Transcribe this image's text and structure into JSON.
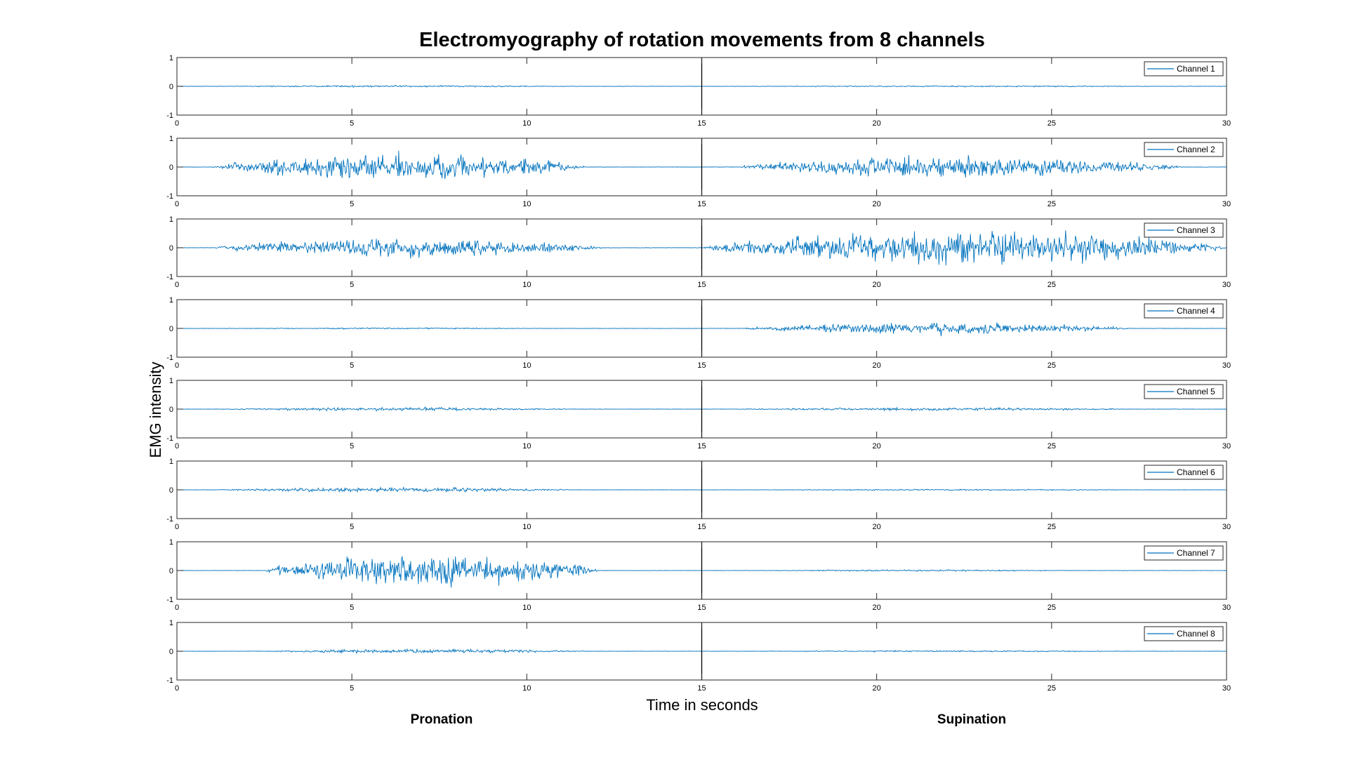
{
  "chart_data": {
    "type": "line",
    "title": "Electromyography of rotation movements from 8 channels",
    "xlabel": "Time in seconds",
    "ylabel": "EMG intensity",
    "xlim": [
      0,
      30
    ],
    "ylim": [
      -1,
      1
    ],
    "xticks": [
      "0",
      "5",
      "10",
      "15",
      "20",
      "25",
      "30"
    ],
    "yticks": [
      "1",
      "0",
      "-1"
    ],
    "grid": false,
    "legend_placement": "top-right",
    "series_color": "#0072BD",
    "divider_x": 15,
    "phase_labels": [
      "Pronation",
      "Supination"
    ],
    "series": [
      {
        "name": "Channel 1",
        "bursts": [
          {
            "start": 0.8,
            "end": 11.5,
            "amp": 0.04
          },
          {
            "start": 15.8,
            "end": 29.0,
            "amp": 0.03
          }
        ],
        "baseline": 0.01
      },
      {
        "name": "Channel 2",
        "bursts": [
          {
            "start": 1.0,
            "end": 11.7,
            "amp": 0.6
          },
          {
            "start": 16.0,
            "end": 28.8,
            "amp": 0.45
          }
        ],
        "baseline": 0.01
      },
      {
        "name": "Channel 3",
        "bursts": [
          {
            "start": 1.0,
            "end": 12.2,
            "amp": 0.4
          },
          {
            "start": 15.0,
            "end": 30.0,
            "amp": 0.75
          }
        ],
        "baseline": 0.012
      },
      {
        "name": "Channel 4",
        "bursts": [
          {
            "start": 1.0,
            "end": 11.0,
            "amp": 0.03
          },
          {
            "start": 16.1,
            "end": 27.3,
            "amp": 0.25
          }
        ],
        "baseline": 0.008
      },
      {
        "name": "Channel 5",
        "bursts": [
          {
            "start": 1.0,
            "end": 11.5,
            "amp": 0.07
          },
          {
            "start": 15.8,
            "end": 27.5,
            "amp": 0.07
          }
        ],
        "baseline": 0.008
      },
      {
        "name": "Channel 6",
        "bursts": [
          {
            "start": 1.0,
            "end": 11.5,
            "amp": 0.1
          },
          {
            "start": 16.0,
            "end": 28.0,
            "amp": 0.03
          }
        ],
        "baseline": 0.008
      },
      {
        "name": "Channel 7",
        "bursts": [
          {
            "start": 2.5,
            "end": 12.1,
            "amp": 0.72
          },
          {
            "start": 16.5,
            "end": 26.0,
            "amp": 0.04
          }
        ],
        "baseline": 0.01
      },
      {
        "name": "Channel 8",
        "bursts": [
          {
            "start": 2.5,
            "end": 11.9,
            "amp": 0.09
          },
          {
            "start": 16.0,
            "end": 28.0,
            "amp": 0.03
          }
        ],
        "baseline": 0.008
      }
    ]
  }
}
